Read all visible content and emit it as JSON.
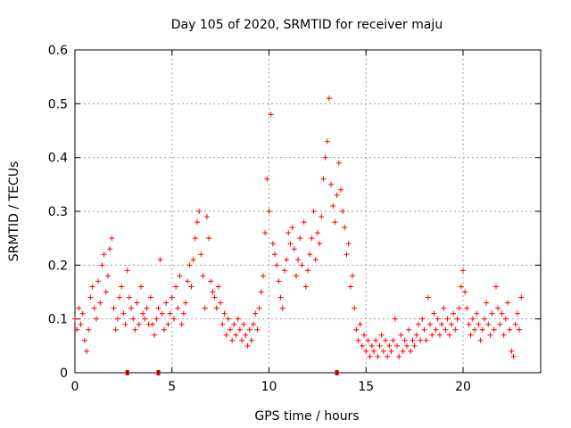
{
  "chart_data": {
    "type": "scatter",
    "title": "Day 105 of 2020, SRMTID for receiver maju",
    "xlabel": "GPS time / hours",
    "ylabel": "SRMTID / TECUs",
    "xlim": [
      0,
      24
    ],
    "ylim": [
      0,
      0.6
    ],
    "xticks": [
      0,
      5,
      10,
      15,
      20
    ],
    "xtick_labels": [
      "0",
      "5",
      "10",
      "15",
      "20"
    ],
    "yticks": [
      0,
      0.1,
      0.2,
      0.3,
      0.4,
      0.5,
      0.6
    ],
    "ytick_labels": [
      "0",
      "0.1",
      "0.2",
      "0.3",
      "0.4",
      "0.5",
      "0.6"
    ],
    "grid": true,
    "marker": "plus",
    "series": [
      {
        "name": "SRMTID",
        "color": "#ff0000",
        "points": [
          [
            0.0,
            0.1
          ],
          [
            0.1,
            0.08
          ],
          [
            0.2,
            0.12
          ],
          [
            0.3,
            0.09
          ],
          [
            0.4,
            0.11
          ],
          [
            0.5,
            0.06
          ],
          [
            0.6,
            0.04
          ],
          [
            0.7,
            0.08
          ],
          [
            0.8,
            0.14
          ],
          [
            0.9,
            0.16
          ],
          [
            1.0,
            0.12
          ],
          [
            1.1,
            0.1
          ],
          [
            1.2,
            0.17
          ],
          [
            1.3,
            0.13
          ],
          [
            1.4,
            0.2
          ],
          [
            1.5,
            0.22
          ],
          [
            1.6,
            0.15
          ],
          [
            1.7,
            0.18
          ],
          [
            1.8,
            0.23
          ],
          [
            1.9,
            0.25
          ],
          [
            2.0,
            0.12
          ],
          [
            2.1,
            0.08
          ],
          [
            2.2,
            0.1
          ],
          [
            2.3,
            0.14
          ],
          [
            2.4,
            0.16
          ],
          [
            2.5,
            0.11
          ],
          [
            2.6,
            0.09
          ],
          [
            2.7,
            0.19
          ],
          [
            2.8,
            0.14
          ],
          [
            2.9,
            0.12
          ],
          [
            3.0,
            0.1
          ],
          [
            3.1,
            0.08
          ],
          [
            3.2,
            0.13
          ],
          [
            3.3,
            0.09
          ],
          [
            3.4,
            0.16
          ],
          [
            3.5,
            0.11
          ],
          [
            3.6,
            0.1
          ],
          [
            3.7,
            0.12
          ],
          [
            3.8,
            0.09
          ],
          [
            3.9,
            0.14
          ],
          [
            4.0,
            0.09
          ],
          [
            4.1,
            0.07
          ],
          [
            4.2,
            0.1
          ],
          [
            4.3,
            0.12
          ],
          [
            4.4,
            0.21
          ],
          [
            4.5,
            0.11
          ],
          [
            4.6,
            0.08
          ],
          [
            4.7,
            0.13
          ],
          [
            4.8,
            0.09
          ],
          [
            4.9,
            0.11
          ],
          [
            5.0,
            0.14
          ],
          [
            5.1,
            0.1
          ],
          [
            5.2,
            0.16
          ],
          [
            5.3,
            0.12
          ],
          [
            5.4,
            0.18
          ],
          [
            5.5,
            0.09
          ],
          [
            5.6,
            0.11
          ],
          [
            5.7,
            0.13
          ],
          [
            5.8,
            0.17
          ],
          [
            5.9,
            0.2
          ],
          [
            6.0,
            0.16
          ],
          [
            6.1,
            0.21
          ],
          [
            6.2,
            0.25
          ],
          [
            6.3,
            0.28
          ],
          [
            6.4,
            0.3
          ],
          [
            6.5,
            0.22
          ],
          [
            6.6,
            0.18
          ],
          [
            6.7,
            0.12
          ],
          [
            6.8,
            0.29
          ],
          [
            6.9,
            0.25
          ],
          [
            7.0,
            0.17
          ],
          [
            7.1,
            0.15
          ],
          [
            7.2,
            0.14
          ],
          [
            7.3,
            0.12
          ],
          [
            7.4,
            0.16
          ],
          [
            7.5,
            0.13
          ],
          [
            7.6,
            0.09
          ],
          [
            7.7,
            0.11
          ],
          [
            7.8,
            0.07
          ],
          [
            7.9,
            0.1
          ],
          [
            8.0,
            0.08
          ],
          [
            8.1,
            0.06
          ],
          [
            8.2,
            0.09
          ],
          [
            8.3,
            0.07
          ],
          [
            8.4,
            0.1
          ],
          [
            8.5,
            0.08
          ],
          [
            8.6,
            0.06
          ],
          [
            8.7,
            0.09
          ],
          [
            8.8,
            0.07
          ],
          [
            8.9,
            0.05
          ],
          [
            9.0,
            0.08
          ],
          [
            9.1,
            0.06
          ],
          [
            9.2,
            0.09
          ],
          [
            9.3,
            0.11
          ],
          [
            9.4,
            0.08
          ],
          [
            9.5,
            0.12
          ],
          [
            9.6,
            0.15
          ],
          [
            9.7,
            0.18
          ],
          [
            9.8,
            0.26
          ],
          [
            9.9,
            0.36
          ],
          [
            10.0,
            0.3
          ],
          [
            10.1,
            0.48
          ],
          [
            10.2,
            0.24
          ],
          [
            10.3,
            0.22
          ],
          [
            10.4,
            0.2
          ],
          [
            10.5,
            0.17
          ],
          [
            10.6,
            0.14
          ],
          [
            10.7,
            0.12
          ],
          [
            10.8,
            0.19
          ],
          [
            10.9,
            0.21
          ],
          [
            11.0,
            0.26
          ],
          [
            11.1,
            0.24
          ],
          [
            11.2,
            0.27
          ],
          [
            11.3,
            0.23
          ],
          [
            11.4,
            0.18
          ],
          [
            11.5,
            0.21
          ],
          [
            11.6,
            0.25
          ],
          [
            11.7,
            0.2
          ],
          [
            11.8,
            0.28
          ],
          [
            11.9,
            0.16
          ],
          [
            12.0,
            0.19
          ],
          [
            12.1,
            0.22
          ],
          [
            12.2,
            0.25
          ],
          [
            12.3,
            0.3
          ],
          [
            12.4,
            0.21
          ],
          [
            12.5,
            0.26
          ],
          [
            12.6,
            0.24
          ],
          [
            12.7,
            0.29
          ],
          [
            12.8,
            0.36
          ],
          [
            12.9,
            0.4
          ],
          [
            13.0,
            0.43
          ],
          [
            13.1,
            0.51
          ],
          [
            13.2,
            0.35
          ],
          [
            13.3,
            0.31
          ],
          [
            13.4,
            0.28
          ],
          [
            13.5,
            0.33
          ],
          [
            13.6,
            0.39
          ],
          [
            13.7,
            0.34
          ],
          [
            13.8,
            0.3
          ],
          [
            13.9,
            0.27
          ],
          [
            14.0,
            0.22
          ],
          [
            14.1,
            0.24
          ],
          [
            14.2,
            0.16
          ],
          [
            14.3,
            0.18
          ],
          [
            14.4,
            0.12
          ],
          [
            14.5,
            0.08
          ],
          [
            14.6,
            0.06
          ],
          [
            14.7,
            0.09
          ],
          [
            14.8,
            0.05
          ],
          [
            14.9,
            0.07
          ],
          [
            15.0,
            0.04
          ],
          [
            15.1,
            0.06
          ],
          [
            15.2,
            0.03
          ],
          [
            15.3,
            0.05
          ],
          [
            15.4,
            0.04
          ],
          [
            15.5,
            0.06
          ],
          [
            15.6,
            0.03
          ],
          [
            15.7,
            0.05
          ],
          [
            15.8,
            0.07
          ],
          [
            15.9,
            0.04
          ],
          [
            16.0,
            0.06
          ],
          [
            16.1,
            0.03
          ],
          [
            16.2,
            0.05
          ],
          [
            16.3,
            0.04
          ],
          [
            16.4,
            0.06
          ],
          [
            16.5,
            0.1
          ],
          [
            16.6,
            0.05
          ],
          [
            16.7,
            0.03
          ],
          [
            16.8,
            0.07
          ],
          [
            16.9,
            0.04
          ],
          [
            17.0,
            0.06
          ],
          [
            17.1,
            0.05
          ],
          [
            17.2,
            0.08
          ],
          [
            17.3,
            0.04
          ],
          [
            17.4,
            0.06
          ],
          [
            17.5,
            0.05
          ],
          [
            17.6,
            0.07
          ],
          [
            17.7,
            0.09
          ],
          [
            17.8,
            0.06
          ],
          [
            17.9,
            0.1
          ],
          [
            18.0,
            0.08
          ],
          [
            18.1,
            0.06
          ],
          [
            18.2,
            0.14
          ],
          [
            18.3,
            0.09
          ],
          [
            18.4,
            0.07
          ],
          [
            18.5,
            0.11
          ],
          [
            18.6,
            0.08
          ],
          [
            18.7,
            0.1
          ],
          [
            18.8,
            0.07
          ],
          [
            18.9,
            0.09
          ],
          [
            19.0,
            0.12
          ],
          [
            19.1,
            0.08
          ],
          [
            19.2,
            0.1
          ],
          [
            19.3,
            0.07
          ],
          [
            19.4,
            0.09
          ],
          [
            19.5,
            0.11
          ],
          [
            19.6,
            0.08
          ],
          [
            19.7,
            0.1
          ],
          [
            19.8,
            0.12
          ],
          [
            19.9,
            0.16
          ],
          [
            20.0,
            0.19
          ],
          [
            20.1,
            0.15
          ],
          [
            20.2,
            0.12
          ],
          [
            20.3,
            0.09
          ],
          [
            20.4,
            0.07
          ],
          [
            20.5,
            0.1
          ],
          [
            20.6,
            0.08
          ],
          [
            20.7,
            0.11
          ],
          [
            20.8,
            0.09
          ],
          [
            20.9,
            0.06
          ],
          [
            21.0,
            0.08
          ],
          [
            21.1,
            0.1
          ],
          [
            21.2,
            0.13
          ],
          [
            21.3,
            0.09
          ],
          [
            21.4,
            0.07
          ],
          [
            21.5,
            0.11
          ],
          [
            21.6,
            0.08
          ],
          [
            21.7,
            0.16
          ],
          [
            21.8,
            0.12
          ],
          [
            21.9,
            0.09
          ],
          [
            22.0,
            0.11
          ],
          [
            22.1,
            0.07
          ],
          [
            22.2,
            0.1
          ],
          [
            22.3,
            0.13
          ],
          [
            22.4,
            0.08
          ],
          [
            22.5,
            0.04
          ],
          [
            22.6,
            0.03
          ],
          [
            22.7,
            0.09
          ],
          [
            22.8,
            0.11
          ],
          [
            22.9,
            0.08
          ],
          [
            23.0,
            0.14
          ]
        ]
      }
    ],
    "axis_markers": [
      {
        "x": 2.7,
        "y": 0.0
      },
      {
        "x": 4.3,
        "y": 0.0
      },
      {
        "x": 13.5,
        "y": 0.0
      }
    ]
  }
}
